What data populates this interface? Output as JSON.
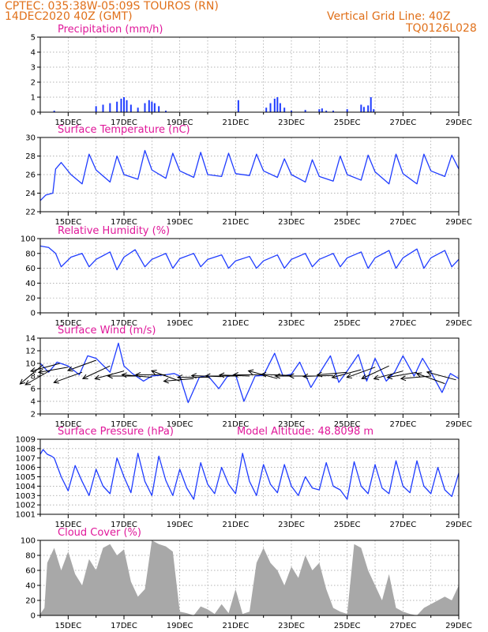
{
  "header": {
    "line1": "CPTEC:   035:38W-05:09S   TOUROS (RN)",
    "line2": "14DEC2020 40Z (GMT)",
    "grid_note": "Vertical Grid Line: 40Z",
    "code": "TQ0126L028"
  },
  "colors": {
    "header": "#e0701a",
    "title": "#e0189a",
    "line": "#1f3cff",
    "bar": "#1f3cff",
    "cloud": "#a8a8a8",
    "arrow": "#000000"
  },
  "chart_data": [
    {
      "id": "precip",
      "type": "bar",
      "title": "Precipitation (mm/h)",
      "x_tick_labels": [
        "15DEC",
        "17DEC",
        "19DEC",
        "21DEC",
        "23DEC",
        "25DEC",
        "27DEC",
        "29DEC"
      ],
      "ylim": [
        0,
        5
      ],
      "y_ticks": [
        0,
        1,
        2,
        3,
        4,
        5
      ],
      "grid": true,
      "x": [
        14.5,
        16.0,
        16.25,
        16.5,
        16.75,
        16.9,
        17.0,
        17.1,
        17.25,
        17.5,
        17.75,
        17.9,
        18.0,
        18.1,
        18.25,
        18.5,
        21.1,
        22.1,
        22.25,
        22.4,
        22.5,
        22.6,
        22.75,
        23.0,
        23.5,
        24.0,
        24.1,
        24.25,
        24.5,
        25.0,
        25.5,
        25.6,
        25.75,
        25.85,
        25.95
      ],
      "values": [
        0.1,
        0.4,
        0.5,
        0.6,
        0.7,
        0.9,
        1.0,
        0.8,
        0.5,
        0.3,
        0.6,
        0.8,
        0.7,
        0.6,
        0.4,
        0.1,
        0.8,
        0.3,
        0.6,
        0.9,
        1.0,
        0.6,
        0.3,
        0.1,
        0.15,
        0.2,
        0.25,
        0.1,
        0.1,
        0.2,
        0.5,
        0.35,
        0.45,
        1.0,
        0.2
      ]
    },
    {
      "id": "temp",
      "type": "line",
      "title": "Surface Temperature (nC)",
      "x_tick_labels": [
        "15DEC",
        "17DEC",
        "19DEC",
        "21DEC",
        "23DEC",
        "25DEC",
        "27DEC",
        "29DEC"
      ],
      "ylim": [
        22,
        30
      ],
      "y_ticks": [
        22,
        24,
        26,
        28,
        30
      ],
      "grid": true,
      "x": [
        14.0,
        14.2,
        14.45,
        14.55,
        14.75,
        15.1,
        15.5,
        15.75,
        16.0,
        16.5,
        16.75,
        17.0,
        17.5,
        17.75,
        18.0,
        18.5,
        18.75,
        19.0,
        19.5,
        19.75,
        20.0,
        20.5,
        20.75,
        21.0,
        21.5,
        21.75,
        22.0,
        22.5,
        22.75,
        23.0,
        23.5,
        23.75,
        24.0,
        24.5,
        24.75,
        25.0,
        25.5,
        25.75,
        26.0,
        26.5,
        26.75,
        27.0,
        27.5,
        27.75,
        28.0,
        28.5,
        28.75,
        29.0
      ],
      "values": [
        23.2,
        23.8,
        24.0,
        26.6,
        27.3,
        26.0,
        25.0,
        28.2,
        26.5,
        25.2,
        28.0,
        26.0,
        25.5,
        28.6,
        26.5,
        25.6,
        28.3,
        26.4,
        25.7,
        28.4,
        26.0,
        25.8,
        28.3,
        26.1,
        25.9,
        28.2,
        26.4,
        25.7,
        27.7,
        26.0,
        25.2,
        27.6,
        25.8,
        25.3,
        28.0,
        26.0,
        25.4,
        28.1,
        26.3,
        25.0,
        28.2,
        26.1,
        25.0,
        28.2,
        26.4,
        25.8,
        28.1,
        26.6
      ]
    },
    {
      "id": "rh",
      "type": "line",
      "title": "Relative Humidity (%)",
      "x_tick_labels": [
        "15DEC",
        "17DEC",
        "19DEC",
        "21DEC",
        "23DEC",
        "25DEC",
        "27DEC",
        "29DEC"
      ],
      "ylim": [
        0,
        100
      ],
      "y_ticks": [
        0,
        20,
        40,
        60,
        80,
        100
      ],
      "grid": true,
      "x": [
        14.0,
        14.3,
        14.55,
        14.75,
        15.1,
        15.5,
        15.75,
        16.0,
        16.5,
        16.75,
        17.0,
        17.4,
        17.75,
        18.0,
        18.5,
        18.75,
        19.0,
        19.5,
        19.75,
        20.0,
        20.5,
        20.75,
        21.0,
        21.5,
        21.75,
        22.0,
        22.5,
        22.75,
        23.0,
        23.5,
        23.75,
        24.0,
        24.5,
        24.75,
        25.0,
        25.5,
        25.75,
        26.0,
        26.5,
        26.75,
        27.0,
        27.5,
        27.75,
        28.0,
        28.5,
        28.75,
        29.0
      ],
      "values": [
        90,
        88,
        80,
        62,
        75,
        80,
        62,
        72,
        82,
        58,
        75,
        85,
        62,
        72,
        80,
        60,
        73,
        80,
        62,
        72,
        78,
        60,
        70,
        76,
        60,
        70,
        78,
        60,
        72,
        80,
        62,
        72,
        80,
        62,
        74,
        82,
        60,
        74,
        84,
        60,
        74,
        86,
        60,
        74,
        84,
        62,
        72
      ]
    },
    {
      "id": "wind",
      "type": "line",
      "title": "Surface Wind (m/s)",
      "x_tick_labels": [
        "15DEC",
        "17DEC",
        "19DEC",
        "21DEC",
        "23DEC",
        "25DEC",
        "27DEC",
        "29DEC"
      ],
      "ylim": [
        2,
        14
      ],
      "y_ticks": [
        2,
        4,
        6,
        8,
        10,
        12,
        14
      ],
      "grid": true,
      "x": [
        14.0,
        14.3,
        14.6,
        15.0,
        15.4,
        15.7,
        16.0,
        16.5,
        16.8,
        17.0,
        17.3,
        17.7,
        18.0,
        18.5,
        18.8,
        19.0,
        19.3,
        19.7,
        20.0,
        20.4,
        20.7,
        21.0,
        21.3,
        21.7,
        22.0,
        22.4,
        22.7,
        23.0,
        23.3,
        23.7,
        24.0,
        24.4,
        24.7,
        25.0,
        25.4,
        25.7,
        26.0,
        26.4,
        26.7,
        27.0,
        27.4,
        27.7,
        28.0,
        28.4,
        28.7,
        29.0
      ],
      "values": [
        10.0,
        8.6,
        10.2,
        9.6,
        8.2,
        11.2,
        10.8,
        8.6,
        13.2,
        9.6,
        8.4,
        7.2,
        8.0,
        8.2,
        8.4,
        8.0,
        3.8,
        7.8,
        8.1,
        6.0,
        7.9,
        8.2,
        4.0,
        8.0,
        8.1,
        11.6,
        8.0,
        8.3,
        10.2,
        6.2,
        8.4,
        11.2,
        7.0,
        8.8,
        11.4,
        7.2,
        10.8,
        7.2,
        8.6,
        11.2,
        8.0,
        10.8,
        8.6,
        5.4,
        8.4,
        7.6
      ],
      "arrows": [
        {
          "x": 14.1,
          "speed": 9.8,
          "dir_deg": 220
        },
        {
          "x": 14.4,
          "speed": 9.0,
          "dir_deg": 210
        },
        {
          "x": 14.7,
          "speed": 10.0,
          "dir_deg": 195
        },
        {
          "x": 15.0,
          "speed": 9.4,
          "dir_deg": 190
        },
        {
          "x": 15.5,
          "speed": 8.6,
          "dir_deg": 200
        },
        {
          "x": 16.0,
          "speed": 10.5,
          "dir_deg": 200
        },
        {
          "x": 16.5,
          "speed": 9.6,
          "dir_deg": 205
        },
        {
          "x": 17.0,
          "speed": 8.8,
          "dir_deg": 195
        },
        {
          "x": 17.5,
          "speed": 8.0,
          "dir_deg": 180
        },
        {
          "x": 18.0,
          "speed": 7.8,
          "dir_deg": 175
        },
        {
          "x": 18.5,
          "speed": 8.2,
          "dir_deg": 180
        },
        {
          "x": 19.0,
          "speed": 7.2,
          "dir_deg": 160
        },
        {
          "x": 19.5,
          "speed": 7.6,
          "dir_deg": 185
        },
        {
          "x": 20.0,
          "speed": 7.8,
          "dir_deg": 180
        },
        {
          "x": 20.5,
          "speed": 7.9,
          "dir_deg": 178
        },
        {
          "x": 21.0,
          "speed": 8.0,
          "dir_deg": 180
        },
        {
          "x": 21.5,
          "speed": 8.0,
          "dir_deg": 178
        },
        {
          "x": 22.0,
          "speed": 8.2,
          "dir_deg": 180
        },
        {
          "x": 22.5,
          "speed": 7.6,
          "dir_deg": 165
        },
        {
          "x": 23.0,
          "speed": 8.1,
          "dir_deg": 178
        },
        {
          "x": 23.5,
          "speed": 8.0,
          "dir_deg": 180
        },
        {
          "x": 24.0,
          "speed": 8.0,
          "dir_deg": 180
        },
        {
          "x": 24.5,
          "speed": 8.1,
          "dir_deg": 182
        },
        {
          "x": 25.0,
          "speed": 8.6,
          "dir_deg": 185
        },
        {
          "x": 25.5,
          "speed": 9.0,
          "dir_deg": 195
        },
        {
          "x": 26.0,
          "speed": 9.4,
          "dir_deg": 200
        },
        {
          "x": 26.5,
          "speed": 9.6,
          "dir_deg": 205
        },
        {
          "x": 27.0,
          "speed": 8.8,
          "dir_deg": 195
        },
        {
          "x": 27.5,
          "speed": 8.6,
          "dir_deg": 190
        },
        {
          "x": 28.0,
          "speed": 8.0,
          "dir_deg": 185
        },
        {
          "x": 28.5,
          "speed": 6.8,
          "dir_deg": 160
        },
        {
          "x": 28.9,
          "speed": 7.4,
          "dir_deg": 165
        }
      ]
    },
    {
      "id": "pressure",
      "type": "line",
      "title": "Surface Pressure (hPa)",
      "annotation": "Model Altitude: 48.8098 m",
      "x_tick_labels": [
        "15DEC",
        "17DEC",
        "19DEC",
        "21DEC",
        "23DEC",
        "25DEC",
        "27DEC",
        "29DEC"
      ],
      "ylim": [
        1001,
        1009
      ],
      "y_ticks": [
        1001,
        1002,
        1003,
        1004,
        1005,
        1006,
        1007,
        1008,
        1009
      ],
      "grid": true,
      "x": [
        14.0,
        14.1,
        14.25,
        14.4,
        14.5,
        14.75,
        15.0,
        15.25,
        15.5,
        15.75,
        16.0,
        16.25,
        16.5,
        16.75,
        17.0,
        17.25,
        17.5,
        17.75,
        18.0,
        18.25,
        18.5,
        18.75,
        19.0,
        19.25,
        19.5,
        19.75,
        20.0,
        20.25,
        20.5,
        20.75,
        21.0,
        21.25,
        21.5,
        21.75,
        22.0,
        22.25,
        22.5,
        22.75,
        23.0,
        23.25,
        23.5,
        23.75,
        24.0,
        24.25,
        24.5,
        24.75,
        25.0,
        25.25,
        25.5,
        25.75,
        26.0,
        26.25,
        26.5,
        26.75,
        27.0,
        27.25,
        27.5,
        27.75,
        28.0,
        28.25,
        28.5,
        28.75,
        29.0
      ],
      "values": [
        1007.4,
        1007.9,
        1007.4,
        1007.2,
        1007.0,
        1005.0,
        1003.5,
        1006.2,
        1004.5,
        1003.0,
        1005.8,
        1004.0,
        1003.2,
        1007.0,
        1005.0,
        1003.3,
        1007.5,
        1004.5,
        1003.0,
        1007.2,
        1004.6,
        1003.0,
        1005.8,
        1003.8,
        1002.6,
        1006.5,
        1004.2,
        1003.2,
        1006.0,
        1004.2,
        1003.2,
        1007.5,
        1004.5,
        1003.0,
        1006.3,
        1004.2,
        1003.3,
        1006.3,
        1004.0,
        1003.0,
        1005.0,
        1003.8,
        1003.6,
        1006.5,
        1004.0,
        1003.6,
        1002.6,
        1006.6,
        1004.0,
        1003.2,
        1006.3,
        1003.8,
        1003.2,
        1006.7,
        1004.0,
        1003.3,
        1006.7,
        1004.0,
        1003.2,
        1006.0,
        1003.6,
        1002.9,
        1005.4
      ]
    },
    {
      "id": "cloud",
      "type": "area",
      "title": "Cloud Cover (%)",
      "x_tick_labels": [
        "15DEC",
        "17DEC",
        "19DEC",
        "21DEC",
        "23DEC",
        "25DEC",
        "27DEC",
        "29DEC"
      ],
      "ylim": [
        0,
        100
      ],
      "y_ticks": [
        0,
        20,
        40,
        60,
        80,
        100
      ],
      "grid": true,
      "x": [
        14.0,
        14.15,
        14.25,
        14.5,
        14.75,
        15.0,
        15.25,
        15.5,
        15.75,
        16.0,
        16.25,
        16.5,
        16.75,
        17.0,
        17.25,
        17.5,
        17.75,
        18.0,
        18.25,
        18.5,
        18.75,
        19.0,
        19.25,
        19.5,
        19.75,
        20.0,
        20.25,
        20.5,
        20.75,
        21.0,
        21.25,
        21.5,
        21.75,
        22.0,
        22.25,
        22.5,
        22.75,
        23.0,
        23.25,
        23.5,
        23.75,
        24.0,
        24.25,
        24.5,
        24.75,
        25.0,
        25.25,
        25.5,
        25.75,
        26.0,
        26.25,
        26.5,
        26.75,
        27.0,
        27.25,
        27.5,
        27.75,
        28.0,
        28.25,
        28.5,
        28.75,
        29.0
      ],
      "values": [
        2,
        10,
        70,
        90,
        60,
        85,
        55,
        40,
        75,
        60,
        90,
        95,
        80,
        88,
        45,
        25,
        35,
        100,
        95,
        92,
        85,
        5,
        3,
        0,
        12,
        8,
        2,
        15,
        3,
        35,
        2,
        5,
        70,
        90,
        70,
        60,
        40,
        65,
        50,
        80,
        60,
        70,
        35,
        10,
        5,
        2,
        95,
        90,
        60,
        40,
        20,
        55,
        10,
        5,
        2,
        0,
        10,
        15,
        20,
        25,
        20,
        40
      ]
    }
  ]
}
